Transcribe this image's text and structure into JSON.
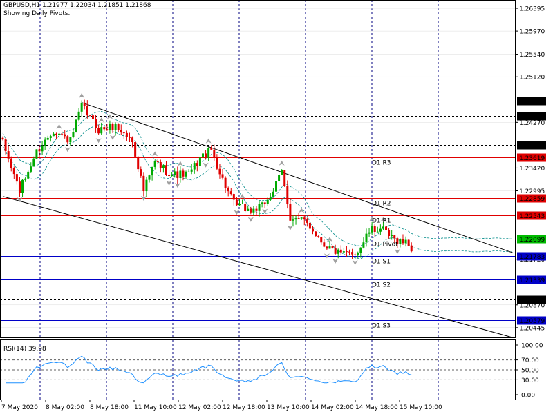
{
  "header": {
    "symbol_line": "GBPUSD,H1  1.21977 1.22034 1.21851 1.21868",
    "subtitle": "Showing Daily Pivots."
  },
  "rsi_panel": {
    "label": "RSI(14) 39.98",
    "tick_labels": [
      "100.00",
      "70.00",
      "50.00",
      "30.00",
      "0.00"
    ]
  },
  "colors": {
    "up_candle": "#00aa00",
    "down_candle": "#e00000",
    "grid": "#000080",
    "resistance_line": "#e00000",
    "pivot_line": "#00bb00",
    "support_line": "#0000c8",
    "channel_line": "#000000",
    "envelope": "#008a88",
    "rsi_line": "#1e90ff",
    "axis_text": "#000000"
  },
  "chart_data": [
    {
      "type": "candlestick",
      "title": "GBPUSD,H1",
      "subtitle": "Showing Daily Pivots.",
      "ohlc_last": {
        "open": 1.21977,
        "high": 1.22034,
        "low": 1.21851,
        "close": 1.21868
      },
      "ylim": [
        1.2025,
        1.2655
      ],
      "y_tick_labels": [
        "1.26395",
        "1.25970",
        "1.25540",
        "1.25120",
        "1.24270",
        "1.23420",
        "1.22995",
        "1.21720",
        "1.20870",
        "1.20445"
      ],
      "x_tick_labels": [
        "7 May 2020",
        "8 May 02:00",
        "8 May 18:00",
        "11 May 10:00",
        "12 May 02:00",
        "12 May 18:00",
        "13 May 10:00",
        "14 May 02:00",
        "14 May 18:00",
        "15 May 10:00"
      ],
      "grid": true,
      "horizontal_levels": [
        {
          "label": "1.24670",
          "value": 1.2467,
          "style": "dashed-black"
        },
        {
          "label": "1.24385",
          "value": 1.24385,
          "style": "dashed-black"
        },
        {
          "label": "1.23854",
          "value": 1.23854,
          "style": "dashed-black"
        },
        {
          "name": "D1 R3",
          "label": "1.23619",
          "value": 1.23619,
          "style": "resistance"
        },
        {
          "name": "D1 R2",
          "label": "1.22859",
          "value": 1.22859,
          "style": "resistance"
        },
        {
          "name": "D1 R1",
          "label": "1.22543",
          "value": 1.22543,
          "style": "resistance"
        },
        {
          "name": "D1 Pivot",
          "label": "1.22099",
          "value": 1.22099,
          "style": "pivot"
        },
        {
          "name": "D1 S1",
          "label": "1.21783",
          "value": 1.21783,
          "style": "support"
        },
        {
          "name": "D1 S2",
          "label": "1.21339",
          "value": 1.21339,
          "style": "support"
        },
        {
          "label": "1.20975",
          "value": 1.20975,
          "style": "dashed-black"
        },
        {
          "name": "D1 S3",
          "label": "1.20579",
          "value": 1.20579,
          "style": "support"
        }
      ],
      "channel_lines": [
        {
          "from": {
            "bar": 28,
            "price": 1.2464
          },
          "to": {
            "bar": 181,
            "price": 1.2184
          }
        },
        {
          "from": {
            "bar": 0,
            "price": 1.2289
          },
          "to": {
            "bar": 181,
            "price": 1.2026
          }
        }
      ],
      "waypoints": [
        {
          "bar": 0,
          "price": 1.2388
        },
        {
          "bar": 6,
          "price": 1.23
        },
        {
          "bar": 12,
          "price": 1.2372
        },
        {
          "bar": 18,
          "price": 1.2413
        },
        {
          "bar": 24,
          "price": 1.2392
        },
        {
          "bar": 28,
          "price": 1.2458
        },
        {
          "bar": 34,
          "price": 1.2413
        },
        {
          "bar": 40,
          "price": 1.242
        },
        {
          "bar": 46,
          "price": 1.2392
        },
        {
          "bar": 50,
          "price": 1.23
        },
        {
          "bar": 54,
          "price": 1.2353
        },
        {
          "bar": 60,
          "price": 1.233
        },
        {
          "bar": 66,
          "price": 1.233
        },
        {
          "bar": 70,
          "price": 1.236
        },
        {
          "bar": 74,
          "price": 1.2375
        },
        {
          "bar": 78,
          "price": 1.232
        },
        {
          "bar": 82,
          "price": 1.2275
        },
        {
          "bar": 88,
          "price": 1.2262
        },
        {
          "bar": 92,
          "price": 1.227
        },
        {
          "bar": 96,
          "price": 1.23
        },
        {
          "bar": 99,
          "price": 1.2335
        },
        {
          "bar": 102,
          "price": 1.225
        },
        {
          "bar": 108,
          "price": 1.224
        },
        {
          "bar": 114,
          "price": 1.22
        },
        {
          "bar": 120,
          "price": 1.218
        },
        {
          "bar": 126,
          "price": 1.2186
        },
        {
          "bar": 130,
          "price": 1.2224
        },
        {
          "bar": 134,
          "price": 1.223
        },
        {
          "bar": 138,
          "price": 1.221
        },
        {
          "bar": 142,
          "price": 1.2205
        },
        {
          "bar": 146,
          "price": 1.2198
        }
      ],
      "envelope_offset": 0.0012,
      "rsi": {
        "name": "RSI(14)",
        "last_value": 39.98,
        "ylim": [
          0,
          100
        ],
        "levels": [
          70,
          50,
          30
        ],
        "tick_labels": [
          "100.00",
          "70.00",
          "50.00",
          "30.00",
          "0.00"
        ]
      }
    }
  ]
}
